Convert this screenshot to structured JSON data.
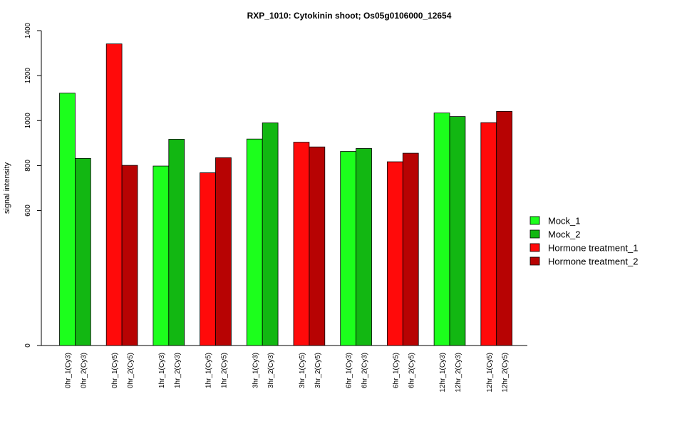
{
  "chart_data": {
    "type": "bar",
    "title": "RXP_1010: Cytokinin shoot; Os05g0106000_12654",
    "ylabel": "signal intensity",
    "xlabel": "",
    "ylim": [
      0,
      1400
    ],
    "yticks": [
      0,
      600,
      800,
      1000,
      1200,
      1400
    ],
    "grid": false,
    "legend_position": "right",
    "legend": [
      {
        "name": "Mock_1",
        "color": "#1cff1c"
      },
      {
        "name": "Mock_2",
        "color": "#12b712"
      },
      {
        "name": "Hormone treatment_1",
        "color": "#ff0a0a"
      },
      {
        "name": "Hormone treatment_2",
        "color": "#b70303"
      }
    ],
    "bars": [
      {
        "label": "0hr_1(Cy3)",
        "value": 1122,
        "color": "#1cff1c"
      },
      {
        "label": "0hr_2(Cy3)",
        "value": 832,
        "color": "#12b712"
      },
      {
        "label": "0hr_1(Cy5)",
        "value": 1341,
        "color": "#ff0a0a"
      },
      {
        "label": "0hr_2(Cy5)",
        "value": 801,
        "color": "#b70303"
      },
      {
        "label": "1hr_1(Cy3)",
        "value": 798,
        "color": "#1cff1c"
      },
      {
        "label": "1hr_2(Cy3)",
        "value": 917,
        "color": "#12b712"
      },
      {
        "label": "1hr_1(Cy5)",
        "value": 768,
        "color": "#ff0a0a"
      },
      {
        "label": "1hr_2(Cy5)",
        "value": 835,
        "color": "#b70303"
      },
      {
        "label": "3hr_1(Cy3)",
        "value": 918,
        "color": "#1cff1c"
      },
      {
        "label": "3hr_2(Cy3)",
        "value": 990,
        "color": "#12b712"
      },
      {
        "label": "3hr_1(Cy5)",
        "value": 904,
        "color": "#ff0a0a"
      },
      {
        "label": "3hr_2(Cy5)",
        "value": 883,
        "color": "#b70303"
      },
      {
        "label": "6hr_1(Cy3)",
        "value": 863,
        "color": "#1cff1c"
      },
      {
        "label": "6hr_2(Cy3)",
        "value": 876,
        "color": "#12b712"
      },
      {
        "label": "6hr_1(Cy5)",
        "value": 817,
        "color": "#ff0a0a"
      },
      {
        "label": "6hr_2(Cy5)",
        "value": 855,
        "color": "#b70303"
      },
      {
        "label": "12hr_1(Cy3)",
        "value": 1034,
        "color": "#1cff1c"
      },
      {
        "label": "12hr_2(Cy3)",
        "value": 1018,
        "color": "#12b712"
      },
      {
        "label": "12hr_1(Cy5)",
        "value": 991,
        "color": "#ff0a0a"
      },
      {
        "label": "12hr_2(Cy5)",
        "value": 1041,
        "color": "#b70303"
      }
    ]
  }
}
